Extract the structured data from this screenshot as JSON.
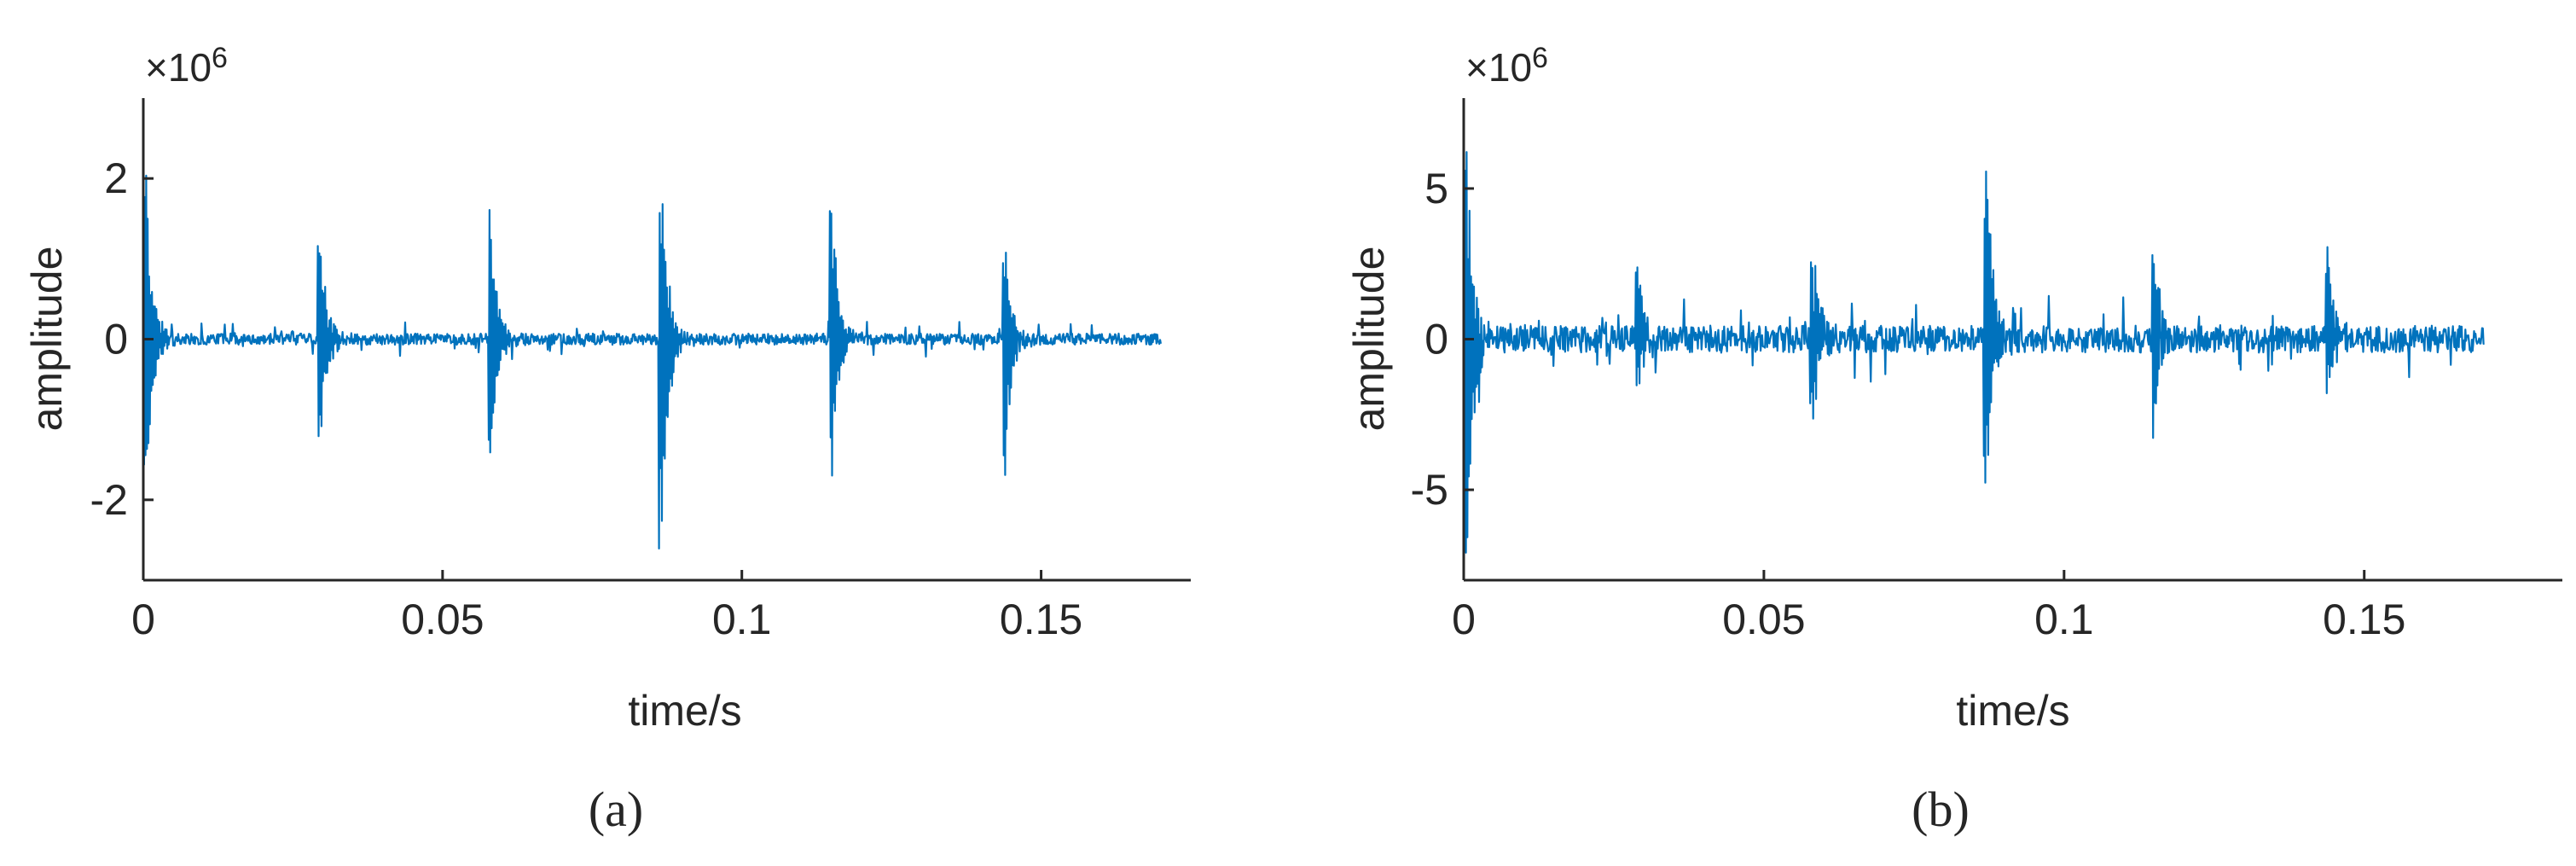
{
  "chart_data": [
    {
      "type": "line",
      "panel_label": "(a)",
      "multiplier": "×10",
      "exponent": "6",
      "xlabel": "time/s",
      "ylabel": "amplitude",
      "xlim": [
        0,
        0.175
      ],
      "ylim": [
        -3,
        3
      ],
      "xticks": [
        0,
        0.05,
        0.1,
        0.15
      ],
      "xtick_labels": [
        "0",
        "0.05",
        "0.1",
        "0.15"
      ],
      "yticks": [
        -2,
        0,
        2
      ],
      "ytick_labels": [
        "-2",
        "0",
        "2"
      ],
      "grid": false,
      "color": "#0072BD",
      "signal": {
        "duration": 0.17,
        "samples": 1400,
        "baseline_noise": 0.07,
        "impulses": [
          {
            "t": 0.0005,
            "pos": 2.0,
            "neg": -2.0
          },
          {
            "t": 0.0295,
            "pos": 1.35,
            "neg": -1.45
          },
          {
            "t": 0.058,
            "pos": 1.65,
            "neg": -1.6
          },
          {
            "t": 0.0865,
            "pos": 2.3,
            "neg": -2.7
          },
          {
            "t": 0.115,
            "pos": 1.85,
            "neg": -1.85
          },
          {
            "t": 0.144,
            "pos": 1.15,
            "neg": -1.55
          }
        ]
      }
    },
    {
      "type": "line",
      "panel_label": "(b)",
      "multiplier": "×10",
      "exponent": "6",
      "xlabel": "time/s",
      "ylabel": "amplitude",
      "xlim": [
        0,
        0.183
      ],
      "ylim": [
        -8,
        8
      ],
      "xticks": [
        0,
        0.05,
        0.1,
        0.15
      ],
      "xtick_labels": [
        "0",
        "0.05",
        "0.1",
        "0.15"
      ],
      "yticks": [
        -5,
        0,
        5
      ],
      "ytick_labels": [
        "-5",
        "0",
        "5"
      ],
      "grid": false,
      "color": "#0072BD",
      "signal": {
        "duration": 0.17,
        "samples": 1400,
        "baseline_noise": 0.45,
        "impulses": [
          {
            "t": 0.0005,
            "pos": 6.3,
            "neg": -8.0
          },
          {
            "t": 0.029,
            "pos": 2.6,
            "neg": -1.9
          },
          {
            "t": 0.058,
            "pos": 3.9,
            "neg": -3.1
          },
          {
            "t": 0.087,
            "pos": 6.8,
            "neg": -5.4
          },
          {
            "t": 0.115,
            "pos": 3.0,
            "neg": -3.2
          },
          {
            "t": 0.144,
            "pos": 2.7,
            "neg": -1.5
          }
        ]
      }
    }
  ]
}
